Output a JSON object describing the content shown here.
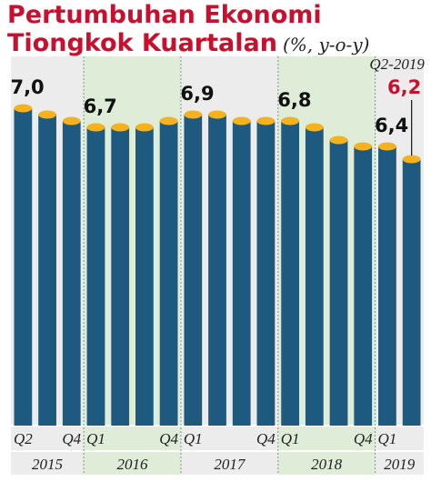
{
  "chart_data": {
    "type": "bar",
    "title_line1": "Pertumbuhan Ekonomi",
    "title_line2": "Tiongkok Kuartalan",
    "unit": "(%, y-o-y)",
    "years": [
      {
        "year": "2015",
        "quarters": [
          "Q2",
          "Q3",
          "Q4"
        ],
        "values": [
          7.0,
          6.9,
          6.8
        ],
        "tick_labels": [
          "Q2",
          "",
          "Q4"
        ]
      },
      {
        "year": "2016",
        "quarters": [
          "Q1",
          "Q2",
          "Q3",
          "Q4"
        ],
        "values": [
          6.7,
          6.7,
          6.7,
          6.8
        ],
        "tick_labels": [
          "Q1",
          "",
          "",
          "Q4"
        ]
      },
      {
        "year": "2017",
        "quarters": [
          "Q1",
          "Q2",
          "Q3",
          "Q4"
        ],
        "values": [
          6.9,
          6.9,
          6.8,
          6.8
        ],
        "tick_labels": [
          "Q1",
          "",
          "",
          "Q4"
        ]
      },
      {
        "year": "2018",
        "quarters": [
          "Q1",
          "Q2",
          "Q3",
          "Q4"
        ],
        "values": [
          6.8,
          6.7,
          6.5,
          6.4
        ],
        "tick_labels": [
          "Q1",
          "",
          "",
          "Q4"
        ]
      },
      {
        "year": "2019",
        "quarters": [
          "Q1",
          "Q2"
        ],
        "values": [
          6.4,
          6.2
        ],
        "tick_labels": [
          "Q1",
          ""
        ]
      }
    ],
    "data_labels": [
      {
        "year": "2015",
        "quarter": "Q2",
        "text": "7,0"
      },
      {
        "year": "2016",
        "quarter": "Q1",
        "text": "6,7"
      },
      {
        "year": "2017",
        "quarter": "Q1",
        "text": "6,9"
      },
      {
        "year": "2018",
        "quarter": "Q1",
        "text": "6,8"
      },
      {
        "year": "2019",
        "quarter": "Q1",
        "text": "6,4"
      },
      {
        "year": "2019",
        "quarter": "Q2",
        "text": "6,2",
        "highlight": true
      }
    ],
    "highlight_label": "Q2-2019",
    "grid": false,
    "colors": {
      "bar": "#1e5a80",
      "bar_top": "#f5b21f",
      "title": "#c8102e",
      "highlight_value": "#c8102e",
      "band_grey": "#ececec",
      "band_green": "#dfecd8",
      "divider": "#7a9a7a"
    }
  }
}
